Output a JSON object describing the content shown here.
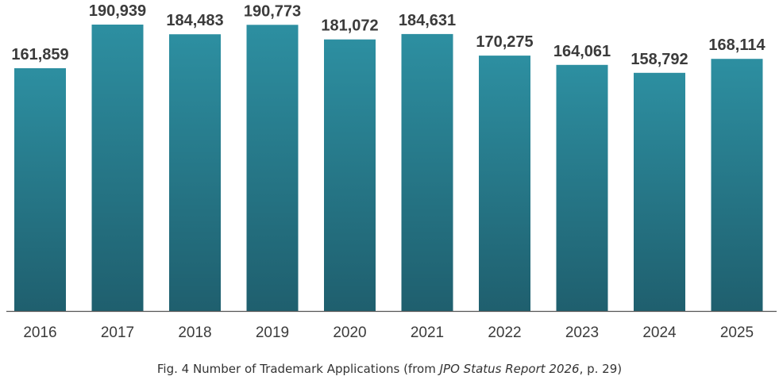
{
  "chart_data": {
    "type": "bar",
    "categories": [
      "2016",
      "2017",
      "2018",
      "2019",
      "2020",
      "2021",
      "2022",
      "2023",
      "2024",
      "2025"
    ],
    "values": [
      161859,
      190939,
      184483,
      190773,
      181072,
      184631,
      170275,
      164061,
      158792,
      168114
    ],
    "value_labels": [
      "161,859",
      "190,939",
      "184,483",
      "190,773",
      "181,072",
      "184,631",
      "170,275",
      "164,061",
      "158,792",
      "168,114"
    ],
    "title": "",
    "xlabel": "",
    "ylabel": "",
    "ylim": [
      0,
      200000
    ],
    "grid": false,
    "legend": "none",
    "colors": {
      "bar_top": "#2d8fa1",
      "bar_bottom": "#1f5f6e",
      "axis": "#555555",
      "label": "#3b3b3b"
    }
  },
  "caption": {
    "prefix": "Fig. 4  Number of Trademark Applications (from ",
    "source_title": "JPO Status Report 2026",
    "suffix": ", p. 29)"
  }
}
